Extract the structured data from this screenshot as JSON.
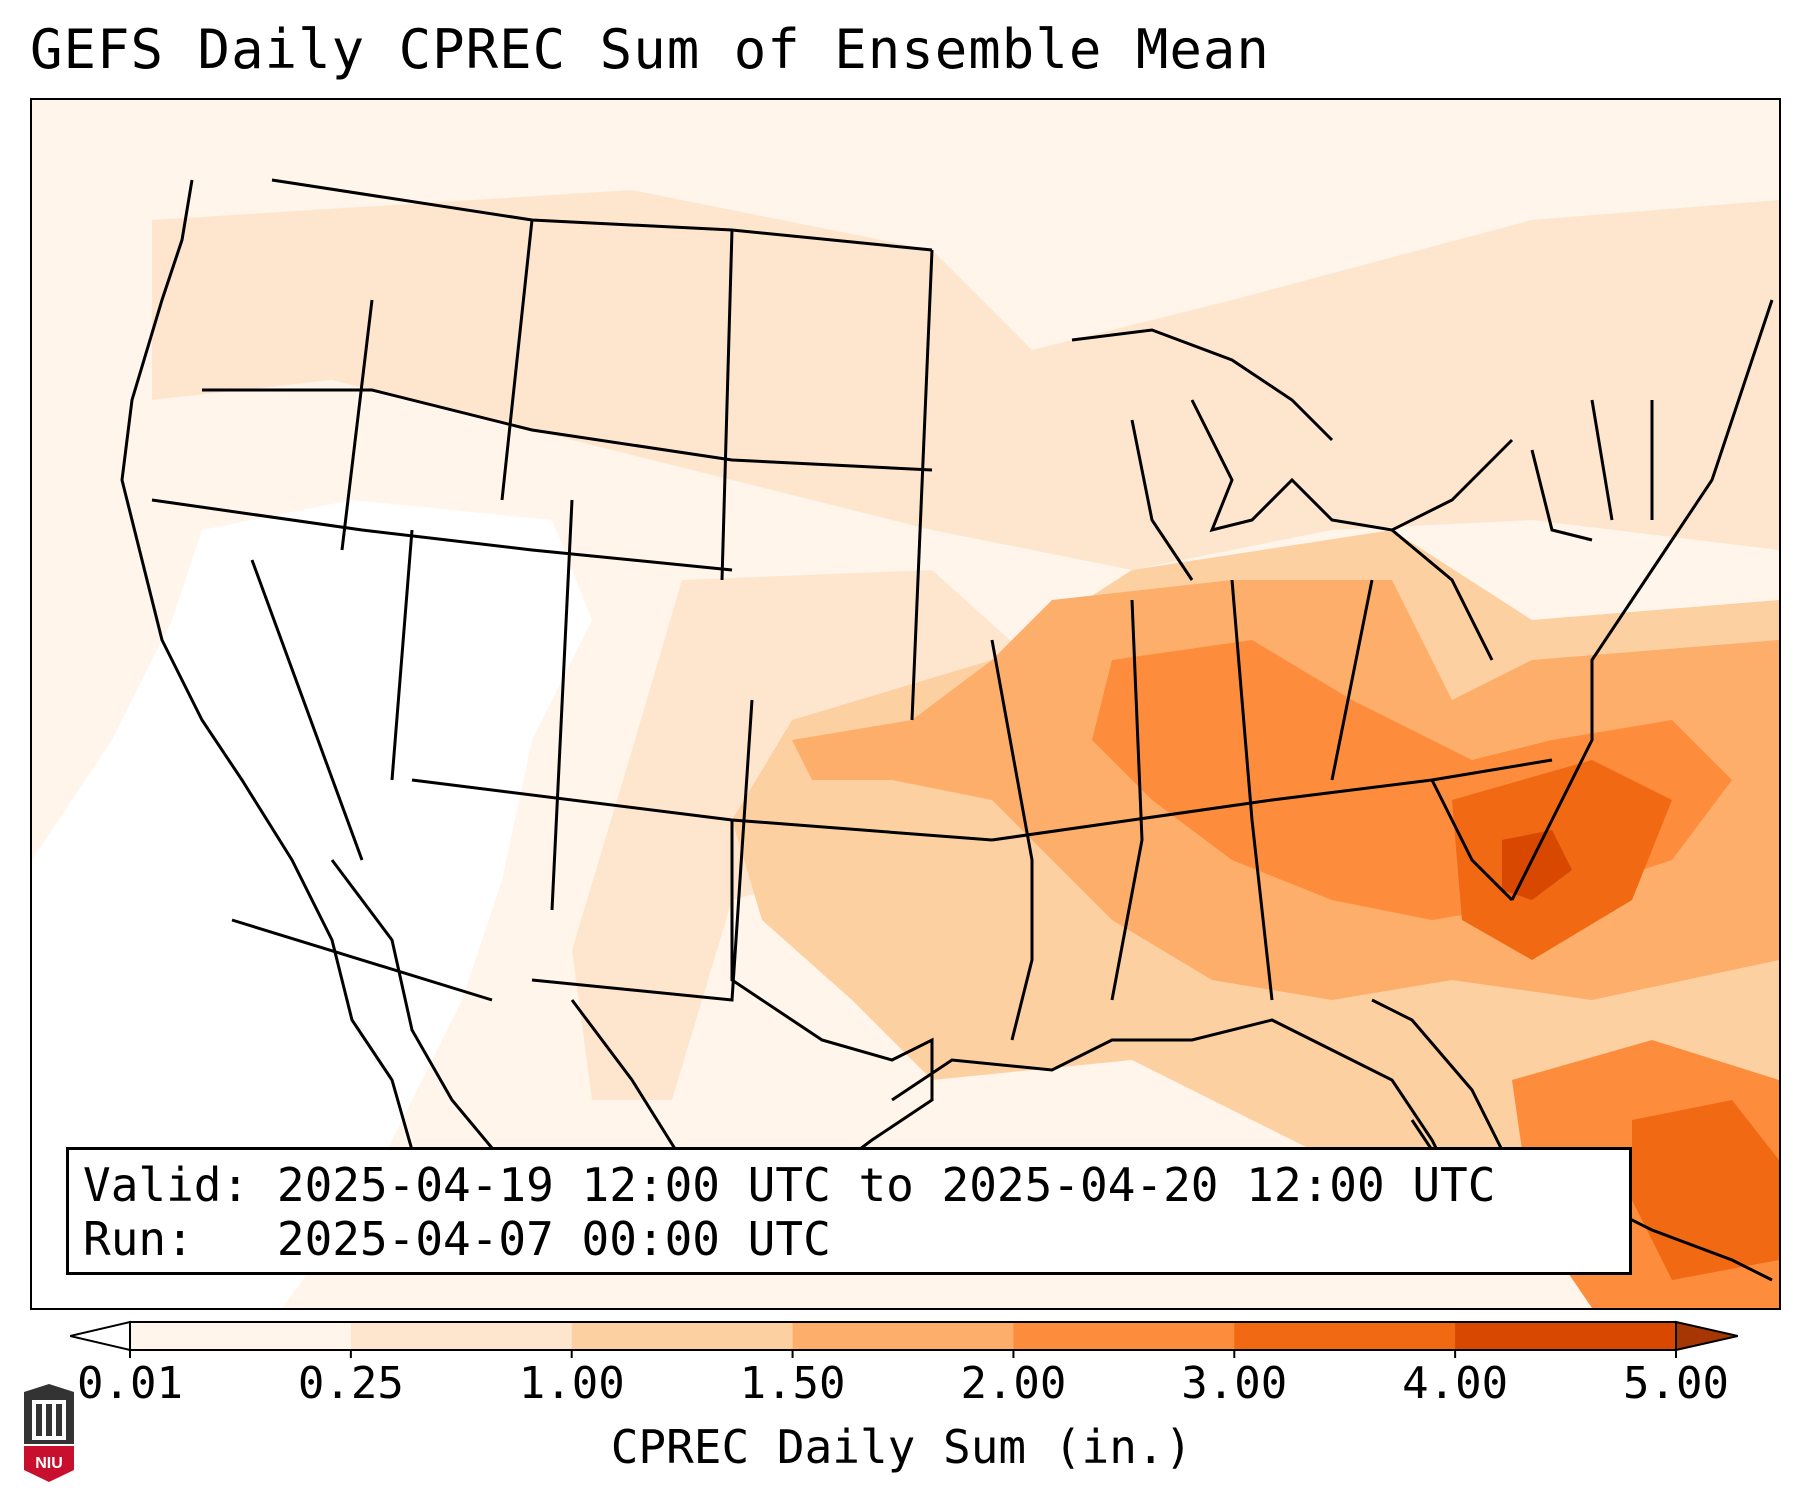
{
  "title": "GEFS Daily CPREC Sum of Ensemble Mean",
  "info": {
    "valid_label": "Valid:",
    "valid_value": "2025-04-19 12:00 UTC to 2025-04-20 12:00 UTC",
    "run_label": "Run:",
    "run_value": "2025-04-07 00:00 UTC"
  },
  "colorbar": {
    "label": "CPREC Daily Sum (in.)",
    "ticks": [
      "0.01",
      "0.25",
      "1.00",
      "1.50",
      "2.00",
      "3.00",
      "4.00",
      "5.00"
    ],
    "colors": [
      "#fff5eb",
      "#fee6ce",
      "#fdd0a2",
      "#fdae6b",
      "#fd8d3c",
      "#f16913",
      "#d94801",
      "#a63603"
    ],
    "under_color": "#ffffff",
    "over_color": "#7f2704"
  },
  "map": {
    "region": "Continental United States",
    "variable": "Convective precipitation",
    "heavy_areas": [
      "Tennessee Valley",
      "Southeast",
      "Gulf Coast",
      "Western Atlantic"
    ]
  },
  "logo_text": "NIU"
}
